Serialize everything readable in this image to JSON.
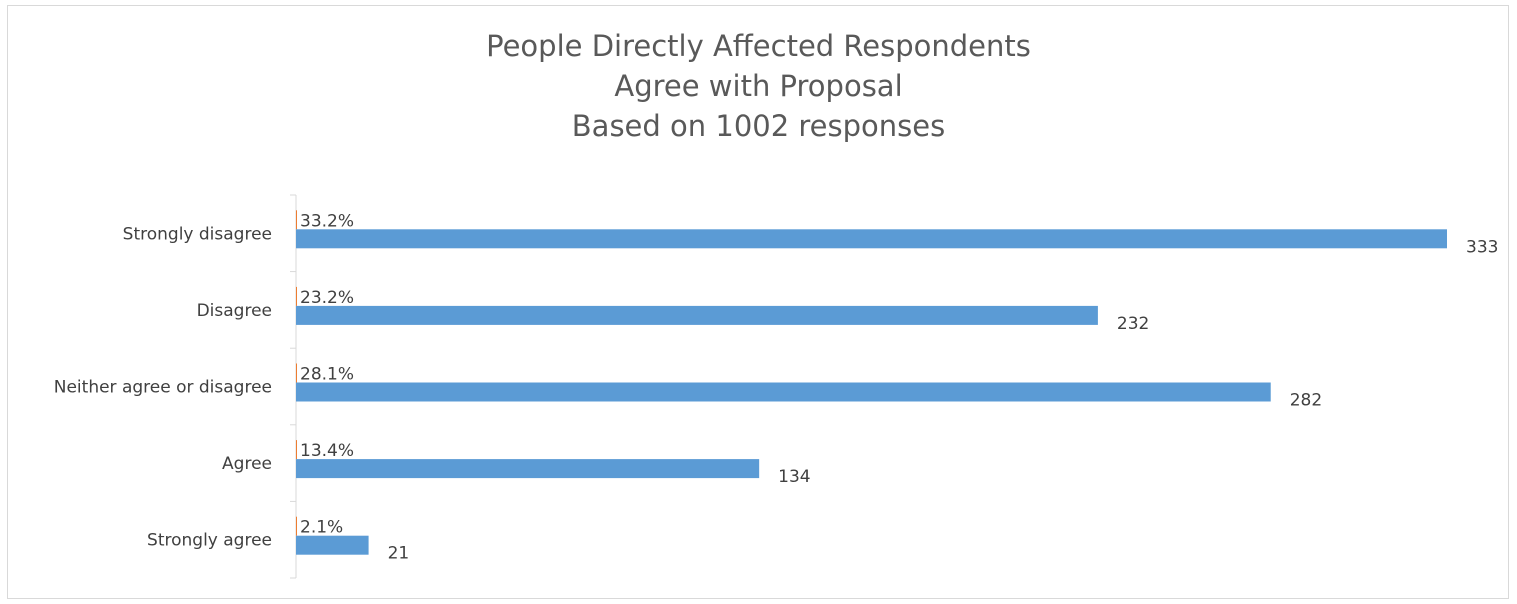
{
  "colors": {
    "bar": "#5b9bd5",
    "percent_bar": "#ed7d31",
    "axis": "#d9d9d9",
    "text": "#404040",
    "title": "#595959"
  },
  "chart_data": {
    "type": "bar",
    "orientation": "horizontal",
    "title": [
      "People Directly Affected Respondents",
      "Agree with Proposal",
      "Based on 1002 responses"
    ],
    "categories": [
      "Strongly disagree",
      "Disagree",
      "Neither agree or disagree",
      "Agree",
      "Strongly agree"
    ],
    "series": [
      {
        "values": [
          333,
          232,
          282,
          134,
          21
        ],
        "data_labels": [
          "333",
          "232",
          "282",
          "134",
          "21"
        ]
      },
      {
        "values": [
          33.2,
          23.2,
          28.1,
          13.4,
          2.1
        ],
        "data_labels": [
          "33.2%",
          "23.2%",
          "28.1%",
          "13.4%",
          "2.1%"
        ]
      }
    ],
    "xlim": [
      0,
      333
    ],
    "grid": false,
    "legend": "none"
  }
}
